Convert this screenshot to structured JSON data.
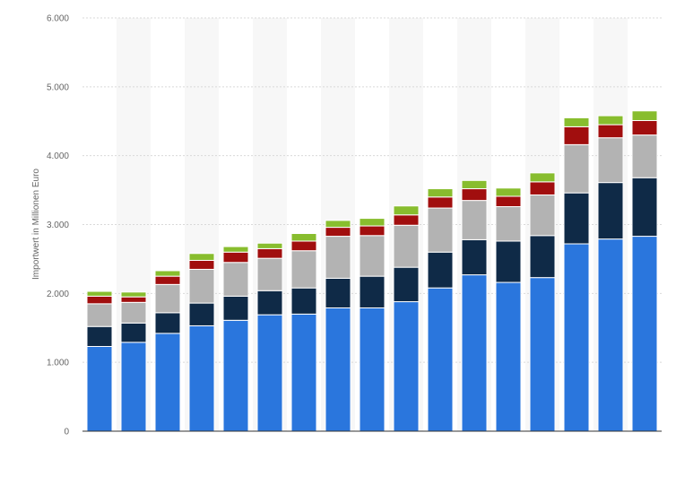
{
  "chart_data": {
    "type": "bar",
    "stacked": true,
    "ylabel": "Importwert in Millionen Euro",
    "ylim": [
      0,
      6000
    ],
    "y_ticks": [
      {
        "value": 0,
        "label": "0"
      },
      {
        "value": 1000,
        "label": "1.000"
      },
      {
        "value": 2000,
        "label": "2.000"
      },
      {
        "value": 3000,
        "label": "3.000"
      },
      {
        "value": 4000,
        "label": "4.000"
      },
      {
        "value": 5000,
        "label": "5.000"
      },
      {
        "value": 6000,
        "label": "6.000"
      }
    ],
    "grid": true,
    "bar_count": 17,
    "series": [
      {
        "color": "#2a76dd",
        "values": [
          1230,
          1290,
          1420,
          1530,
          1610,
          1690,
          1700,
          1790,
          1790,
          1880,
          2080,
          2270,
          2160,
          2230,
          2720,
          2790,
          2830
        ]
      },
      {
        "color": "#0f2a47",
        "values": [
          290,
          280,
          300,
          330,
          350,
          350,
          380,
          430,
          460,
          500,
          520,
          510,
          600,
          610,
          740,
          820,
          850
        ]
      },
      {
        "color": "#b3b3b3",
        "values": [
          330,
          300,
          410,
          490,
          490,
          470,
          540,
          610,
          590,
          610,
          640,
          570,
          500,
          590,
          700,
          650,
          620
        ]
      },
      {
        "color": "#a10e0e",
        "values": [
          110,
          80,
          120,
          130,
          150,
          140,
          140,
          130,
          140,
          150,
          160,
          170,
          150,
          190,
          260,
          190,
          210
        ]
      },
      {
        "color": "#88bd2e",
        "values": [
          70,
          70,
          80,
          100,
          80,
          80,
          110,
          100,
          110,
          130,
          120,
          120,
          120,
          130,
          130,
          130,
          140
        ]
      }
    ]
  }
}
